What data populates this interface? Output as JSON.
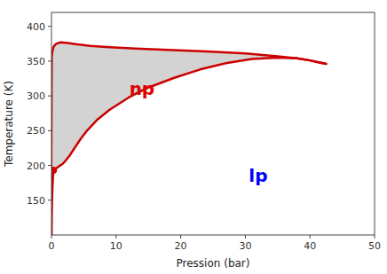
{
  "chart_data": {
    "type": "area",
    "xlabel": "Pression (bar)",
    "ylabel": "Temperature (K)",
    "xlim": [
      0,
      50
    ],
    "ylim": [
      100,
      420
    ],
    "xticks": [
      0,
      10,
      20,
      30,
      40,
      50
    ],
    "yticks": [
      150,
      200,
      250,
      300,
      350,
      400
    ],
    "grid": false,
    "color": "#d3d3d3",
    "series": [
      {
        "type": "area",
        "color": "#cc0000",
        "x": [
          0.05,
          0.3,
          0.6,
          1.0,
          1.5,
          2.5,
          4,
          6,
          9,
          13,
          18,
          24,
          30,
          35,
          38,
          40,
          41,
          42,
          42.5
        ],
        "values": [
          360,
          370,
          374,
          376,
          377,
          376,
          374,
          372,
          370,
          368,
          366,
          364,
          361,
          357,
          354,
          351,
          349,
          347,
          346
        ]
      },
      {
        "type": "area",
        "color": "#cc0000",
        "x": [
          42.5,
          42,
          41,
          40,
          38,
          35,
          31,
          27,
          23,
          19,
          15,
          12,
          9,
          7,
          5.5,
          4.5,
          3.5,
          2.8,
          2.2,
          1.7,
          1.2,
          0.9,
          0.6,
          0.45,
          0.35,
          0.3
        ],
        "values": [
          346,
          347,
          349,
          351,
          354,
          355,
          353,
          347,
          338,
          326,
          312,
          298,
          280,
          265,
          250,
          238,
          224,
          214,
          207,
          202,
          199,
          197,
          195,
          194,
          193,
          193
        ]
      },
      {
        "type": "area",
        "color": "#cc0000",
        "x": [
          0.05,
          0.04,
          0.03,
          0.02,
          0.01,
          0.0
        ],
        "values": [
          360,
          350,
          340,
          325,
          310,
          100
        ]
      },
      {
        "type": "line",
        "color": "#cc0000",
        "x": [
          0.3,
          0.25,
          0.2,
          0.15,
          0.1,
          0.06,
          0.03,
          0.01,
          0.0
        ],
        "values": [
          193,
          187,
          178,
          167,
          155,
          142,
          130,
          118,
          100
        ]
      },
      {
        "type": "scatter",
        "color": "#cc0000",
        "x": [
          0.3
        ],
        "values": [
          193
        ]
      }
    ],
    "annotations": [
      {
        "text": "np",
        "x": 14,
        "y": 310,
        "color": "#dd0000"
      },
      {
        "text": "lp",
        "x": 32,
        "y": 185,
        "color": "blue"
      }
    ]
  }
}
